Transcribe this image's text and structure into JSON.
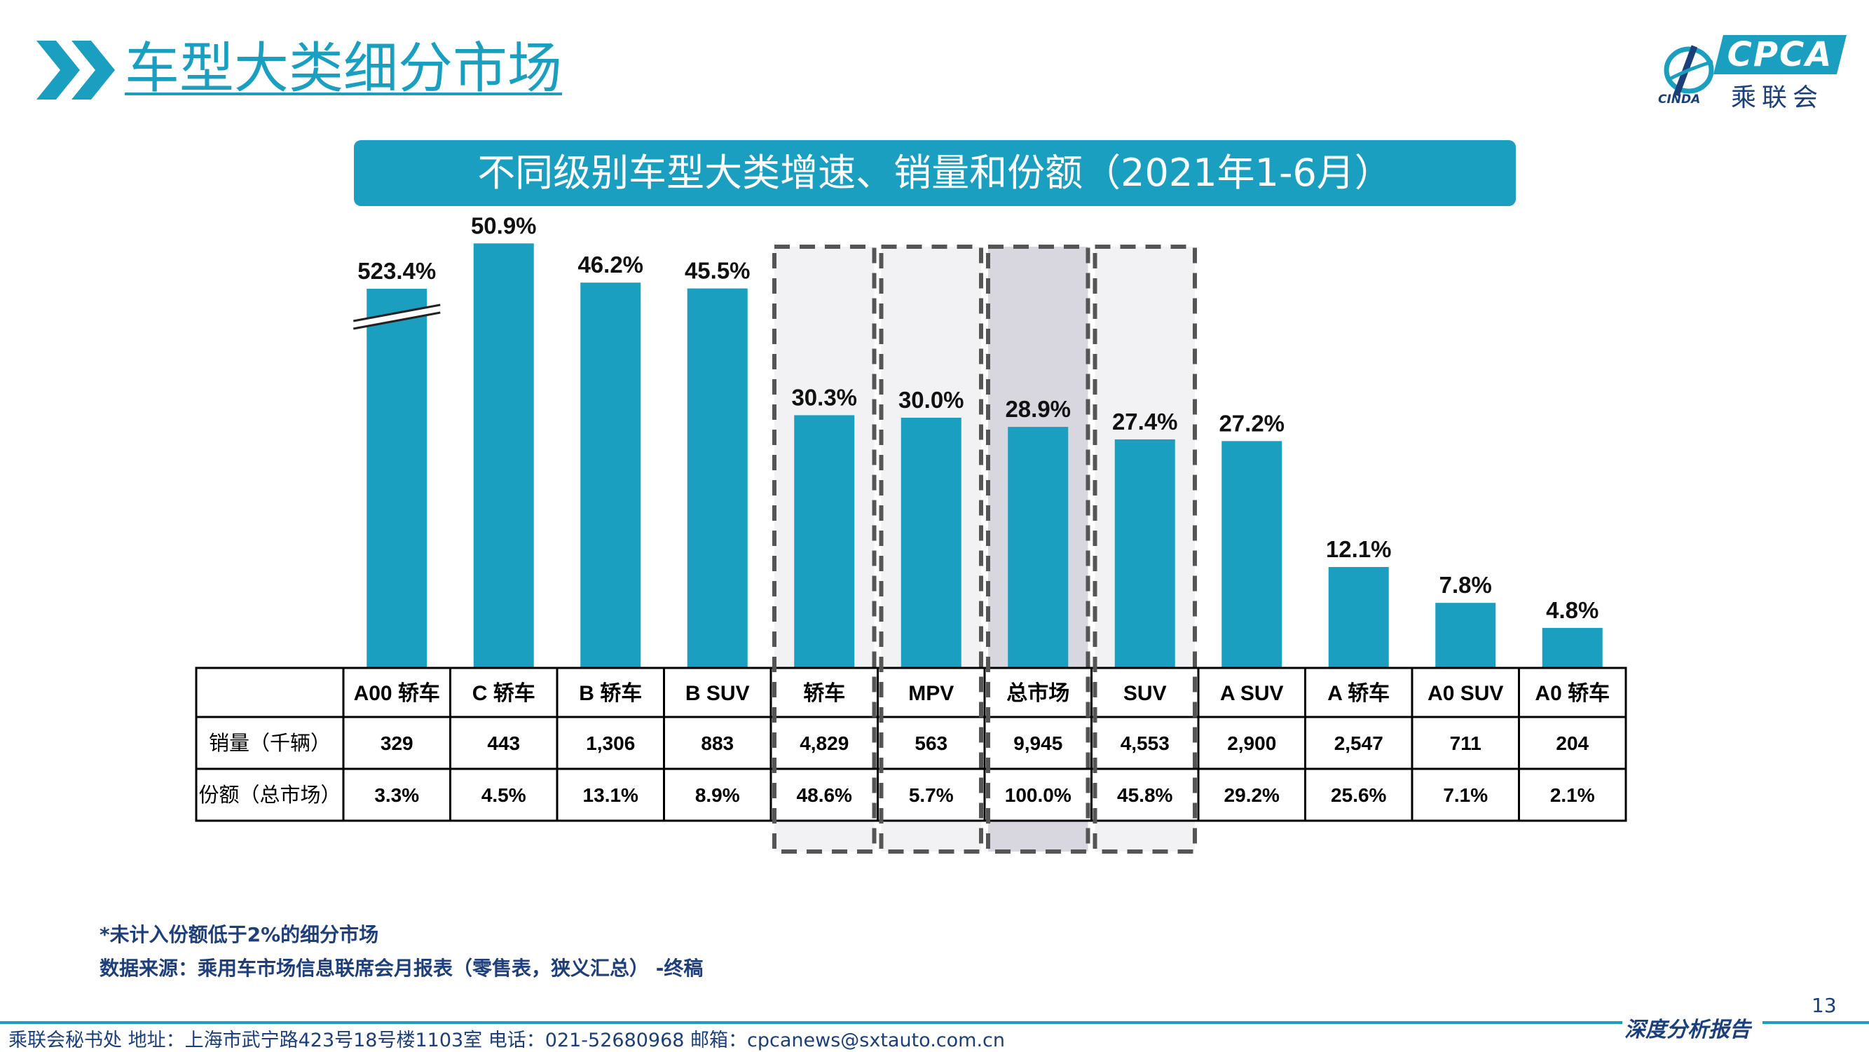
{
  "page": {
    "title": "车型大类细分市场",
    "number": "13"
  },
  "logo": {
    "text": "CPCA",
    "cn": "乘联会",
    "sub": "CINDA"
  },
  "banner": {
    "text": "不同级别车型大类增速、销量和份额（2021年1-6月）"
  },
  "chart_data": {
    "type": "bar",
    "title": "不同级别车型大类增速、销量和份额（2021年1-6月）",
    "categories": [
      "A00 轿车",
      "C 轿车",
      "B 轿车",
      "B SUV",
      "轿车",
      "MPV",
      "总市场",
      "SUV",
      "A SUV",
      "A 轿车",
      "A0 SUV",
      "A0 轿车"
    ],
    "growth_percent": [
      523.4,
      50.9,
      46.2,
      45.5,
      30.3,
      30.0,
      28.9,
      27.4,
      27.2,
      12.1,
      7.8,
      4.8
    ],
    "growth_labels": [
      "523.4%",
      "50.9%",
      "46.2%",
      "45.5%",
      "30.3%",
      "30.0%",
      "28.9%",
      "27.4%",
      "27.2%",
      "12.1%",
      "7.8%",
      "4.8%"
    ],
    "axis_break": "A00 轿车",
    "highlighted": [
      "轿车",
      "MPV",
      "总市场",
      "SUV"
    ],
    "bar_color": "#1a9fc0",
    "table": {
      "rows": [
        {
          "label": "销量（千辆）",
          "values": [
            "329",
            "443",
            "1,306",
            "883",
            "4,829",
            "563",
            "9,945",
            "4,553",
            "2,900",
            "2,547",
            "711",
            "204"
          ]
        },
        {
          "label": "份额（总市场）",
          "values": [
            "3.3%",
            "4.5%",
            "13.1%",
            "8.9%",
            "48.6%",
            "5.7%",
            "100.0%",
            "45.8%",
            "29.2%",
            "25.6%",
            "7.1%",
            "2.1%"
          ]
        }
      ]
    }
  },
  "notes": {
    "note1": "*未计入份额低于2%的细分市场",
    "note2": "数据来源：乘用车市场信息联席会月报表（零售表，狭义汇总） -终稿"
  },
  "footer": {
    "info": "乘联会秘书处   地址：上海市武宁路423号18号楼1103室   电话：021-52680968   邮箱：cpcanews@sxtauto.com.cn",
    "tag": "深度分析报告"
  },
  "colors": {
    "accent": "#1a9fc0",
    "navy": "#1a3f7a",
    "highlight_fill": "#f2f2f4",
    "total_fill": "#d8d7e0"
  }
}
